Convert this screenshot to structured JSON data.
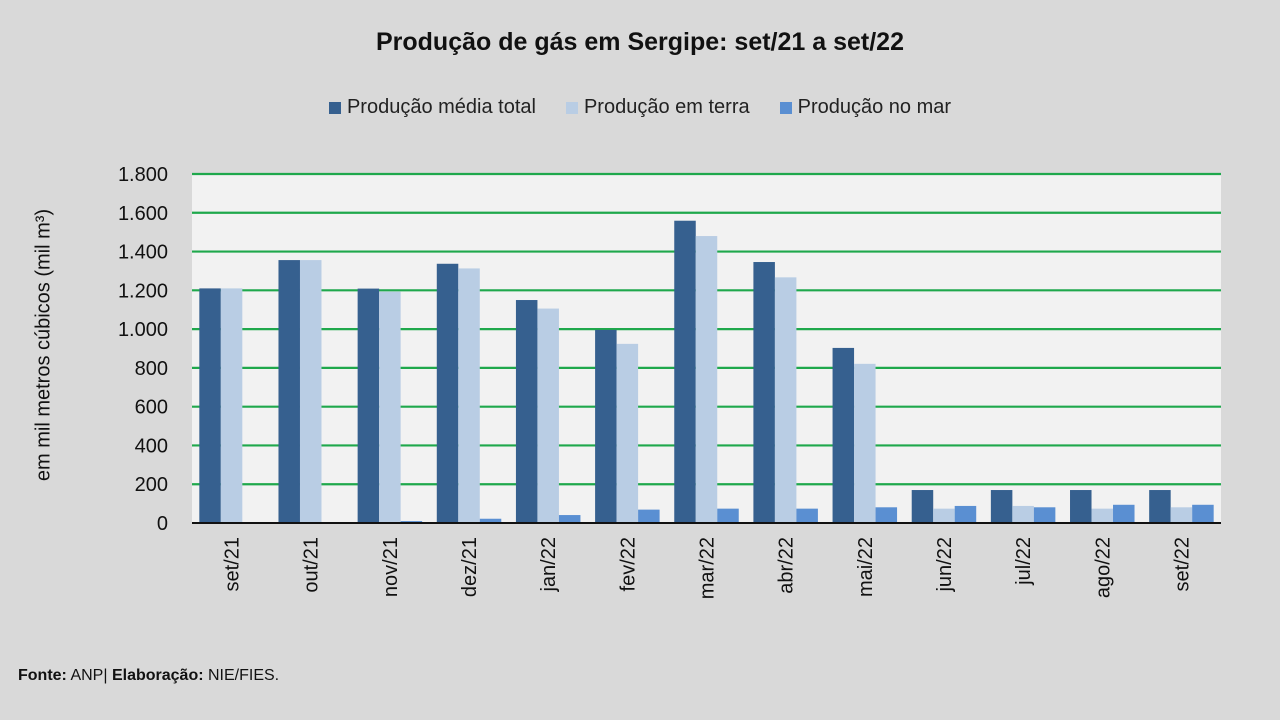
{
  "chart_data": {
    "type": "bar",
    "title": "Produção de gás em Sergipe: set/21 a set/22",
    "xlabel": "",
    "ylabel": "em mil metros cúbicos (mil m³)",
    "ylim": [
      0,
      1800
    ],
    "yticks": [
      0,
      200,
      400,
      600,
      800,
      1000,
      1200,
      1400,
      1600,
      1800
    ],
    "ytick_labels": [
      "0",
      "200",
      "400",
      "600",
      "800",
      "1.000",
      "1.200",
      "1.400",
      "1.600",
      "1.800"
    ],
    "grid": true,
    "legend_position": "top-center",
    "categories": [
      "set/21",
      "out/21",
      "nov/21",
      "dez/21",
      "jan/22",
      "fev/22",
      "mar/22",
      "abr/22",
      "mai/22",
      "jun/22",
      "jul/22",
      "ago/22",
      "set/22"
    ],
    "series": [
      {
        "name": "Produção média total",
        "color": "#36608f",
        "values": [
          1210,
          1356,
          1209,
          1337,
          1150,
          996,
          1559,
          1346,
          903,
          170,
          170,
          170,
          170
        ]
      },
      {
        "name": "Produção em terra",
        "color": "#b9cde4",
        "values": [
          1210,
          1356,
          1193,
          1313,
          1106,
          924,
          1480,
          1267,
          821,
          74,
          88,
          74,
          81
        ]
      },
      {
        "name": "Produção no mar",
        "color": "#5a8fd2",
        "values": [
          0,
          0,
          10,
          22,
          41,
          69,
          74,
          74,
          81,
          88,
          81,
          94,
          94
        ]
      }
    ]
  },
  "footer": {
    "source_label": "Fonte:",
    "source_value": "ANP|",
    "elab_label": "Elaboração:",
    "elab_value": "NIE/FIES."
  },
  "colors": {
    "grid": "#1fa84c",
    "plot_bg": "#f2f2f2",
    "page_bg": "#d9d9d9"
  }
}
